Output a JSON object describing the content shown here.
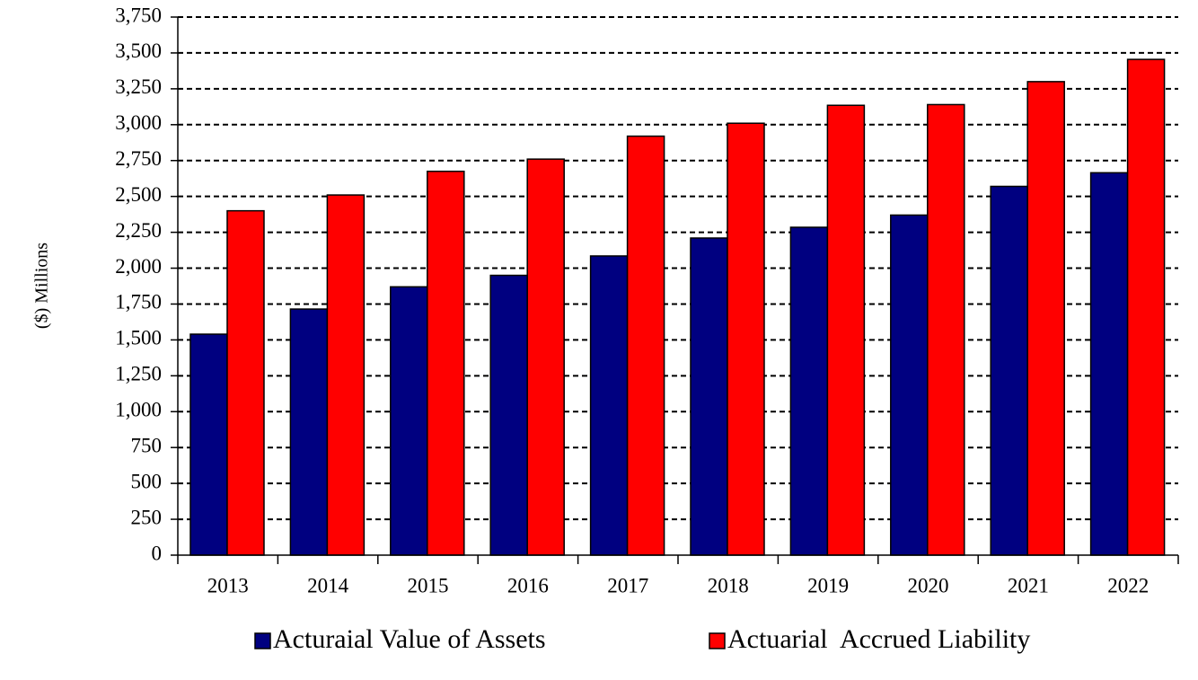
{
  "chart_data": {
    "type": "bar",
    "y_label": "($) Millions",
    "categories": [
      "2013",
      "2014",
      "2015",
      "2016",
      "2017",
      "2018",
      "2019",
      "2020",
      "2021",
      "2022"
    ],
    "series": [
      {
        "name": "Acturaial Value of Assets",
        "color": "#000080",
        "values": [
          1540,
          1715,
          1870,
          1950,
          2085,
          2210,
          2285,
          2370,
          2570,
          2665
        ]
      },
      {
        "name": "Actuarial  Accrued Liability",
        "color": "#ff0000",
        "values": [
          2400,
          2510,
          2675,
          2760,
          2920,
          3010,
          3135,
          3140,
          3300,
          3455
        ]
      }
    ],
    "ylim": [
      0,
      3750
    ],
    "yticks": [
      0,
      250,
      500,
      750,
      {
        "value": 1000,
        "label": "1,000"
      },
      {
        "value": 1250,
        "label": "1,250"
      },
      {
        "value": 1500,
        "label": "1,500"
      },
      {
        "value": 1750,
        "label": "1,750"
      },
      {
        "value": 2000,
        "label": "2,000"
      },
      {
        "value": 2250,
        "label": "2,250"
      },
      {
        "value": 2500,
        "label": "2,500"
      },
      {
        "value": 2750,
        "label": "2,750"
      },
      {
        "value": 3000,
        "label": "3,000"
      },
      {
        "value": 3250,
        "label": "3,250"
      },
      {
        "value": 3500,
        "label": "3,500"
      },
      {
        "value": 3750,
        "label": "3,750"
      }
    ],
    "grid": true,
    "legend": "bottom"
  }
}
